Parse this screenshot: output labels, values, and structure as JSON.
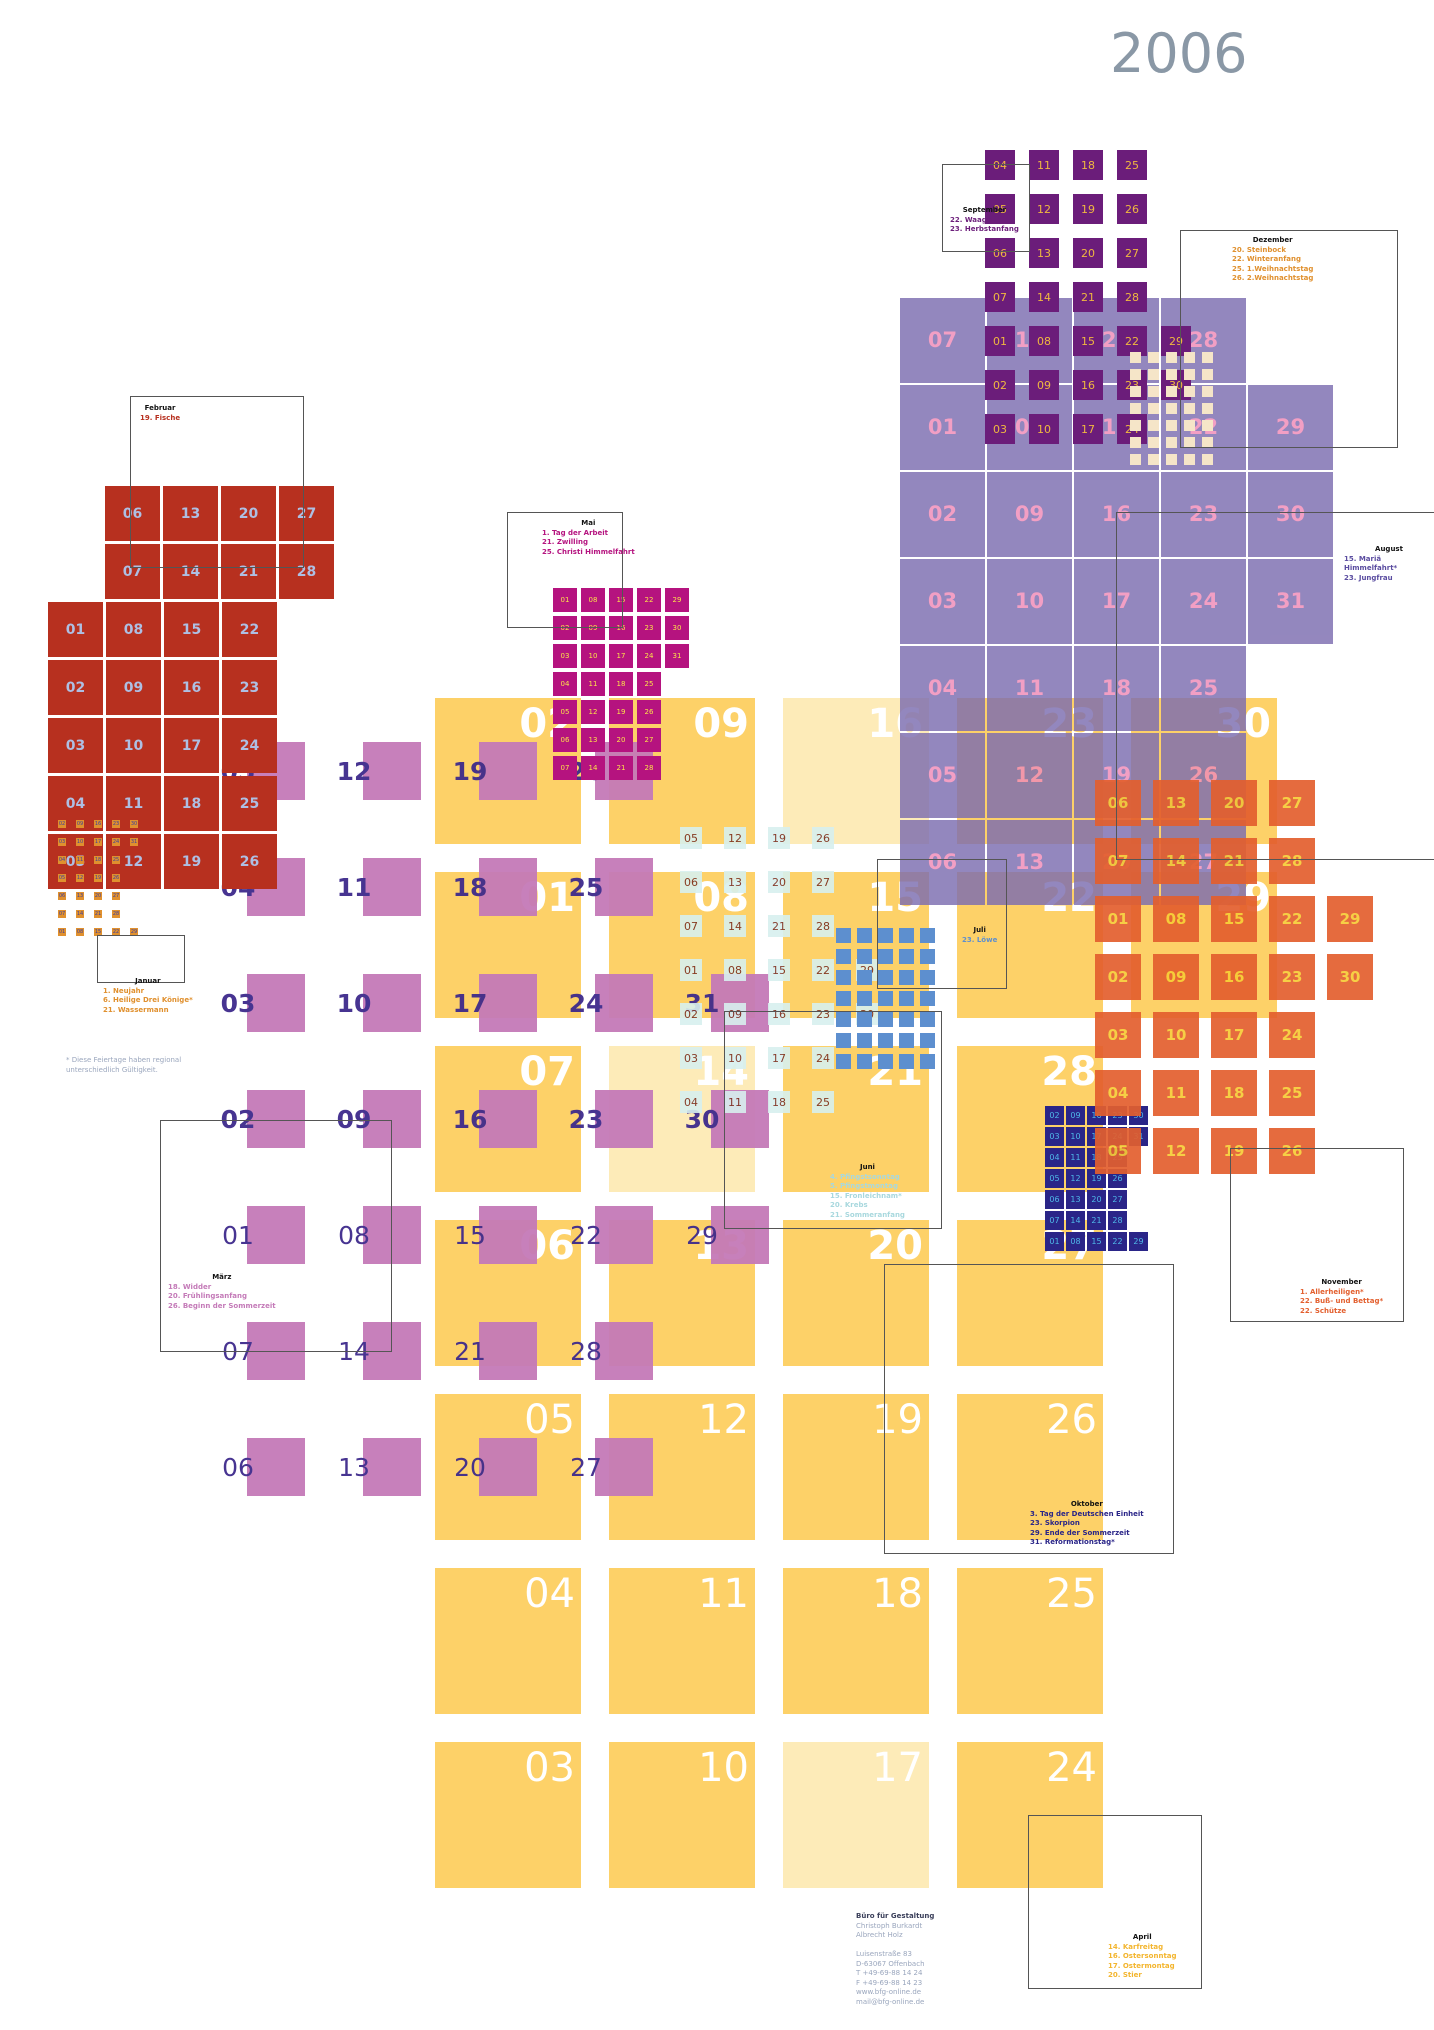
{
  "year": "2006",
  "months": [
    {
      "key": "april",
      "color": "#fdd168",
      "numColor": "#ffffff",
      "holidayColor": "#fdebb8",
      "holidays": [
        16,
        17,
        14
      ],
      "days": [
        [
          2,
          9,
          16,
          23,
          30
        ],
        [
          1,
          8,
          15,
          22,
          29
        ],
        [
          7,
          14,
          21,
          28
        ],
        [
          6,
          13,
          20,
          27
        ],
        [
          5,
          12,
          19,
          26
        ],
        [
          4,
          11,
          18,
          25
        ],
        [
          3,
          10,
          17,
          24
        ]
      ]
    },
    {
      "key": "maerz",
      "color": "#c47ab8",
      "numColor": "#3e2a8c",
      "days": [
        [
          5,
          12,
          19,
          26
        ],
        [
          4,
          11,
          18,
          25
        ],
        [
          3,
          10,
          17,
          24,
          31
        ],
        [
          2,
          9,
          16,
          23,
          30
        ],
        [
          1,
          8,
          15,
          22,
          29
        ],
        [
          7,
          14,
          21,
          28
        ],
        [
          6,
          13,
          20,
          27
        ]
      ]
    },
    {
      "key": "februar",
      "color": "#b7301f",
      "numColor": "#aebfe3",
      "days": [
        [
          6,
          13,
          20,
          27
        ],
        [
          7,
          14,
          21,
          28
        ],
        [
          1,
          8,
          15,
          22
        ],
        [
          2,
          9,
          16,
          23
        ],
        [
          3,
          10,
          17,
          24
        ],
        [
          4,
          11,
          18,
          25
        ],
        [
          5,
          12,
          19,
          26
        ]
      ]
    },
    {
      "key": "januar",
      "color": "#e0902e",
      "numColor": "#3a3fa0",
      "days": [
        [
          2,
          9,
          16,
          23,
          30
        ],
        [
          3,
          10,
          17,
          24,
          31
        ],
        [
          4,
          11,
          18,
          25
        ],
        [
          5,
          12,
          19,
          26
        ],
        [
          6,
          13,
          20,
          27
        ],
        [
          7,
          14,
          21,
          28
        ],
        [
          1,
          8,
          15,
          22,
          29
        ]
      ]
    },
    {
      "key": "mai",
      "color": "#b5137f",
      "numColor": "#fce34a",
      "days": [
        [
          1,
          8,
          15,
          22,
          29
        ],
        [
          2,
          9,
          16,
          23,
          30
        ],
        [
          3,
          10,
          17,
          24,
          31
        ],
        [
          4,
          11,
          18,
          25
        ],
        [
          5,
          12,
          19,
          26
        ],
        [
          6,
          13,
          20,
          27
        ],
        [
          7,
          14,
          21,
          28
        ]
      ]
    },
    {
      "key": "juni",
      "color": "#d8f0ef",
      "numColor": "#7a2b1a",
      "days": [
        [
          5,
          12,
          19,
          26
        ],
        [
          6,
          13,
          20,
          27
        ],
        [
          7,
          14,
          21,
          28
        ],
        [
          1,
          8,
          15,
          22,
          29
        ],
        [
          2,
          9,
          16,
          23,
          30
        ],
        [
          3,
          10,
          17,
          24
        ],
        [
          4,
          11,
          18,
          25
        ]
      ]
    },
    {
      "key": "juli",
      "color": "#5d8fcf",
      "numColor": "#5d8fcf",
      "days": []
    },
    {
      "key": "august",
      "color": "#7c6db0",
      "numColor": "#f08bb8",
      "days": [
        [
          7,
          14,
          21,
          28
        ],
        [
          1,
          8,
          15,
          22,
          29
        ],
        [
          2,
          9,
          16,
          23,
          30
        ],
        [
          3,
          10,
          17,
          24,
          31
        ],
        [
          4,
          11,
          18,
          25
        ],
        [
          5,
          12,
          19,
          26
        ],
        [
          6,
          13,
          20,
          27
        ]
      ]
    },
    {
      "key": "september",
      "color": "#6b1d7a",
      "numColor": "#f0b840",
      "days": [
        [
          4,
          11,
          18,
          25
        ],
        [
          5,
          12,
          19,
          26
        ],
        [
          6,
          13,
          20,
          27
        ],
        [
          7,
          14,
          21,
          28
        ],
        [
          1,
          8,
          15,
          22,
          29
        ],
        [
          2,
          9,
          16,
          23,
          30
        ],
        [
          3,
          10,
          17,
          24
        ]
      ]
    },
    {
      "key": "oktober",
      "color": "#2a2588",
      "numColor": "#4fb8e8",
      "days": [
        [
          2,
          9,
          16,
          23,
          30
        ],
        [
          3,
          10,
          17,
          24,
          31
        ],
        [
          4,
          11,
          18,
          25
        ],
        [
          5,
          12,
          19,
          26
        ],
        [
          6,
          13,
          20,
          27
        ],
        [
          7,
          14,
          21,
          28
        ],
        [
          1,
          8,
          15,
          22,
          29
        ]
      ]
    },
    {
      "key": "november",
      "color": "#e35f2e",
      "numColor": "#f6cc36",
      "days": [
        [
          6,
          13,
          20,
          27
        ],
        [
          7,
          14,
          21,
          28
        ],
        [
          1,
          8,
          15,
          22,
          29
        ],
        [
          2,
          9,
          16,
          23,
          30
        ],
        [
          3,
          10,
          17,
          24
        ],
        [
          4,
          11,
          18,
          25
        ],
        [
          5,
          12,
          19,
          26
        ]
      ]
    },
    {
      "key": "dezember",
      "color": "#f5e5c8",
      "numColor": "#f5e5c8",
      "days": []
    }
  ],
  "legends": {
    "januar": {
      "title": "Januar",
      "lines": [
        "1. Neujahr",
        "6. Heilige Drei Könige*",
        "21. Wassermann"
      ],
      "color": "#e0902e"
    },
    "februar": {
      "title": "Februar",
      "lines": [
        "19. Fische"
      ],
      "color": "#b7301f"
    },
    "maerz": {
      "title": "März",
      "lines": [
        "18. Widder",
        "20. Frühlingsanfang",
        "26. Beginn der Sommerzeit"
      ],
      "color": "#c47ab8"
    },
    "april": {
      "title": "April",
      "lines": [
        "14. Karfreitag",
        "16. Ostersonntag",
        "17. Ostermontag",
        "20. Stier"
      ],
      "color": "#f3b52e"
    },
    "mai": {
      "title": "Mai",
      "lines": [
        "1. Tag der Arbeit",
        "21. Zwilling",
        "25. Christi Himmelfahrt"
      ],
      "color": "#b5137f"
    },
    "juni": {
      "title": "Juni",
      "lines": [
        "4. Pfingstsonntag",
        "5. Pfingstmontag",
        "15. Fronleichnam*",
        "20. Krebs",
        "21. Sommeranfang"
      ],
      "color": "#a8d8de"
    },
    "juli": {
      "title": "Juli",
      "lines": [
        "23. Löwe"
      ],
      "color": "#5d8fcf"
    },
    "august": {
      "title": "August",
      "lines": [
        "15. Mariä Himmelfahrt*",
        "23. Jungfrau"
      ],
      "color": "#5a4ca0"
    },
    "september": {
      "title": "September",
      "lines": [
        "22. Waage",
        "23. Herbstanfang"
      ],
      "color": "#6b1d7a"
    },
    "oktober": {
      "title": "Oktober",
      "lines": [
        "3. Tag der Deutschen Einheit",
        "23. Skorpion",
        "29. Ende der Sommerzeit",
        "31. Reformationstag*"
      ],
      "color": "#2a2588"
    },
    "november": {
      "title": "November",
      "lines": [
        "1. Allerheiligen*",
        "22. Buß- und Bettag*",
        "22. Schütze"
      ],
      "color": "#e35f2e"
    },
    "dezember": {
      "title": "Dezember",
      "lines": [
        "20. Steinbock",
        "22. Winteranfang",
        "25. 1.Weihnachtstag",
        "26. 2.Weihnachtstag"
      ],
      "color": "#e0902e"
    }
  },
  "footnote": {
    "lines": [
      "* Diese Feiertage haben regional",
      "  unterschiedlich Gültigkeit."
    ],
    "color": "#9aa6bd"
  },
  "imprint": {
    "lines": [
      "Büro für Gestaltung",
      "Christoph Burkardt",
      "Albrecht Holz",
      "",
      "Luisenstraße 83",
      "D-63067 Offenbach",
      "T  +49-69-88 14 24",
      "F  +49-69-88 14 23",
      "www.bfg-online.de",
      "mail@bfg-online.de"
    ],
    "color": "#9aa6bd"
  }
}
